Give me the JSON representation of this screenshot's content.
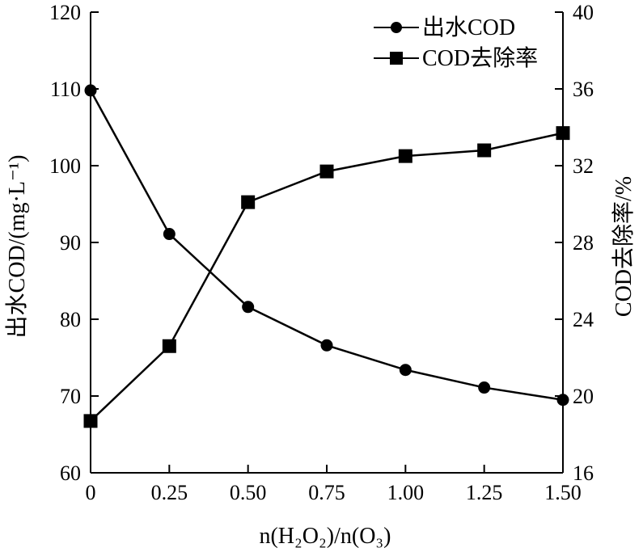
{
  "chart_data": {
    "type": "line",
    "x": [
      0,
      0.25,
      0.5,
      0.75,
      1.0,
      1.25,
      1.5
    ],
    "x_tick_labels": [
      "0",
      "0.25",
      "0.50",
      "0.75",
      "1.00",
      "1.25",
      "1.50"
    ],
    "xlim": [
      0,
      1.5
    ],
    "xlabel": "n(H₂O₂)/n(O₃)",
    "y_left": {
      "label": "出水COD/(mg·L⁻¹)",
      "lim": [
        60,
        120
      ],
      "ticks": [
        "60",
        "70",
        "80",
        "90",
        "100",
        "110",
        "120"
      ]
    },
    "y_right": {
      "label": "COD去除率/%",
      "lim": [
        16,
        40
      ],
      "ticks": [
        "16",
        "20",
        "24",
        "28",
        "32",
        "36",
        "40"
      ]
    },
    "series": [
      {
        "name": "出水COD",
        "axis": "left",
        "marker": "circle",
        "values": [
          109.8,
          91.1,
          81.6,
          76.6,
          73.4,
          71.1,
          69.5
        ]
      },
      {
        "name": "COD去除率",
        "axis": "right",
        "marker": "square",
        "values": [
          18.7,
          22.6,
          30.1,
          31.7,
          32.5,
          32.8,
          33.7
        ]
      }
    ],
    "legend_position": "top-right",
    "grid": false
  }
}
